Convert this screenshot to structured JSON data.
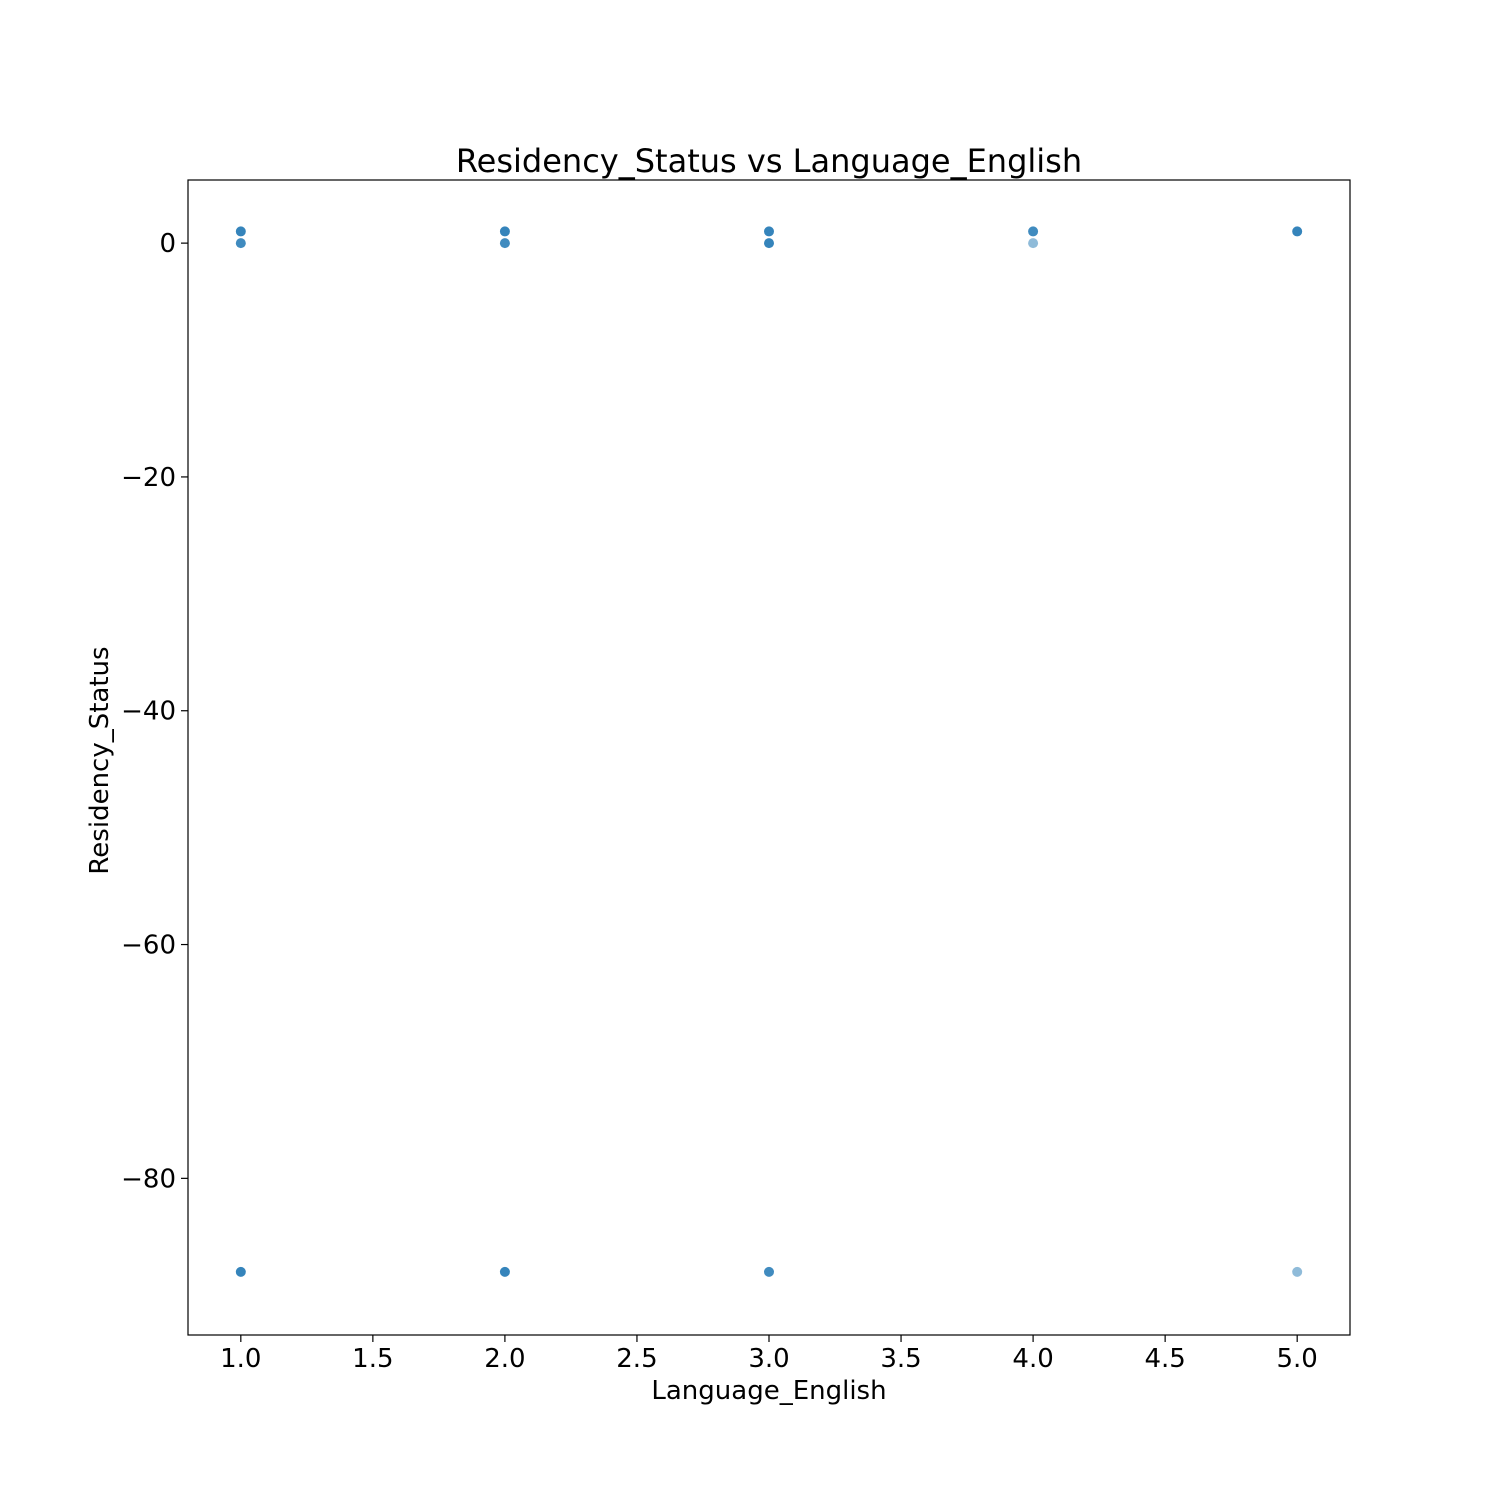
{
  "chart_data": {
    "type": "scatter",
    "title": "Residency_Status vs Language_English",
    "xlabel": "Language_English",
    "ylabel": "Residency_Status",
    "xlim": [
      0.8,
      5.2
    ],
    "ylim": [
      -93.4,
      5.4
    ],
    "xticks": [
      1.0,
      1.5,
      2.0,
      2.5,
      3.0,
      3.5,
      4.0,
      4.5,
      5.0
    ],
    "xtick_labels": [
      "1.0",
      "1.5",
      "2.0",
      "2.5",
      "3.0",
      "3.5",
      "4.0",
      "4.5",
      "5.0"
    ],
    "yticks": [
      0,
      -20,
      -40,
      -60,
      -80
    ],
    "ytick_labels": [
      "0",
      "−20",
      "−40",
      "−60",
      "−80"
    ],
    "grid": false,
    "marker_color": "#1f77b4",
    "series": [
      {
        "points": [
          {
            "x": 1,
            "y": 1,
            "opacity": 0.9
          },
          {
            "x": 1,
            "y": 0,
            "opacity": 0.85
          },
          {
            "x": 1,
            "y": -88,
            "opacity": 0.9
          },
          {
            "x": 2,
            "y": 1,
            "opacity": 0.9
          },
          {
            "x": 2,
            "y": 0,
            "opacity": 0.85
          },
          {
            "x": 2,
            "y": -88,
            "opacity": 0.9
          },
          {
            "x": 3,
            "y": 1,
            "opacity": 0.9
          },
          {
            "x": 3,
            "y": 0,
            "opacity": 0.9
          },
          {
            "x": 3,
            "y": -88,
            "opacity": 0.85
          },
          {
            "x": 4,
            "y": 1,
            "opacity": 0.85
          },
          {
            "x": 4,
            "y": 0,
            "opacity": 0.5
          },
          {
            "x": 5,
            "y": 1,
            "opacity": 0.9
          },
          {
            "x": 5,
            "y": -88,
            "opacity": 0.5
          }
        ]
      }
    ]
  }
}
